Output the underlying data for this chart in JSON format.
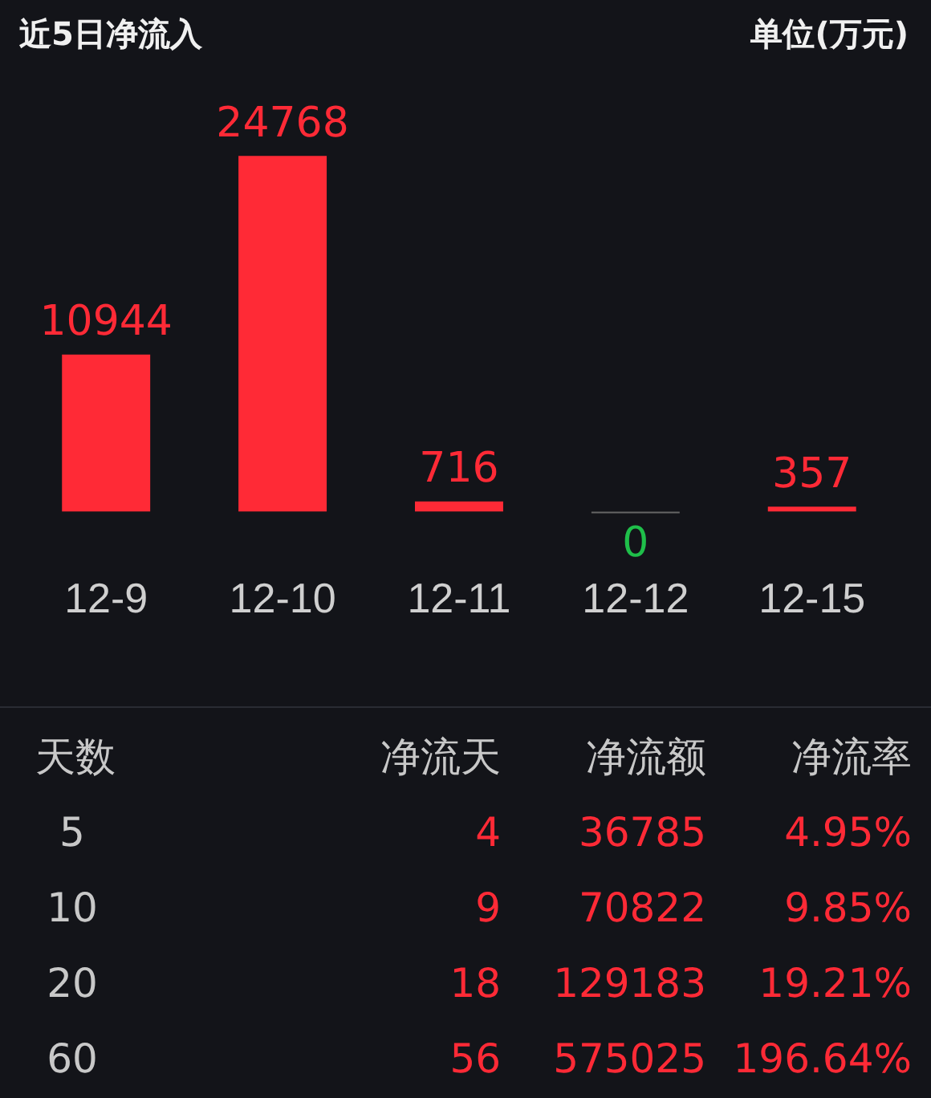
{
  "chart_data": [
    {
      "type": "bar",
      "title": "近5日净流入",
      "annotations": [
        "单位(万元)"
      ],
      "categories": [
        "12-9",
        "12-10",
        "12-11",
        "12-12",
        "12-15"
      ],
      "values": [
        10944,
        24768,
        716,
        0,
        357
      ],
      "colors": [
        "#ff2a36",
        "#ff2a36",
        "#ff2a36",
        "#1fbf4a",
        "#ff2a36"
      ],
      "data_labels": true
    },
    {
      "type": "other",
      "color": "#ff2a36",
      "categories": [
        "天数",
        "净流天",
        "净流额",
        "净流率"
      ],
      "annotations": [
        "5",
        "4",
        "36785",
        "4.95%",
        "10",
        "9",
        "70822",
        "9.85%",
        "20",
        "18",
        "129183",
        "19.21%",
        "60",
        "56",
        "575025",
        "196.64%"
      ]
    }
  ]
}
